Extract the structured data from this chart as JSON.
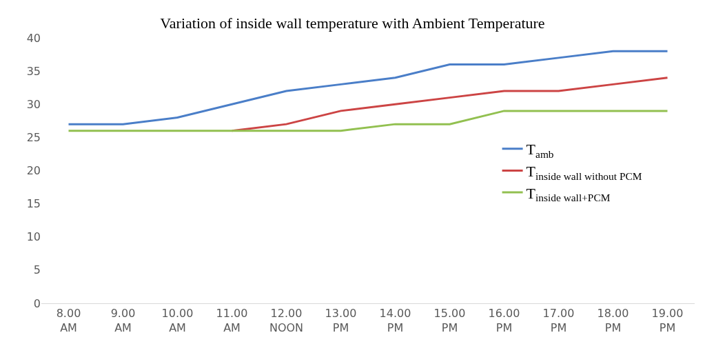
{
  "chart_data": {
    "type": "line",
    "title": "Variation of inside wall temperature with Ambient Temperature",
    "categories": [
      "8.00\nAM",
      "9.00\nAM",
      "10.00\nAM",
      "11.00\nAM",
      "12.00\nNOON",
      "13.00\nPM",
      "14.00\nPM",
      "15.00\nPM",
      "16.00\nPM",
      "17.00\nPM",
      "18.00\nPM",
      "19.00\nPM"
    ],
    "series": [
      {
        "name": "T$_{amb}$",
        "color": "#4a7ec8",
        "values": [
          27,
          27,
          28,
          30,
          32,
          33,
          34,
          36,
          36,
          37,
          38,
          38
        ]
      },
      {
        "name": "T$_{inside wall without PCM}$",
        "color": "#cc4444",
        "values": [
          null,
          null,
          null,
          26,
          27,
          29,
          30,
          31,
          32,
          32,
          33,
          34
        ]
      },
      {
        "name": "T$_{inside wall+PCM}$",
        "color": "#92c050",
        "values": [
          26,
          26,
          26,
          26,
          26,
          26,
          27,
          27,
          29,
          29,
          29,
          29
        ]
      }
    ],
    "ylim": [
      0,
      40
    ],
    "yticks": [
      0,
      5,
      10,
      15,
      20,
      25,
      30,
      35,
      40
    ],
    "grid": false,
    "legend": "right",
    "marker": "none",
    "line_style": "solid"
  }
}
